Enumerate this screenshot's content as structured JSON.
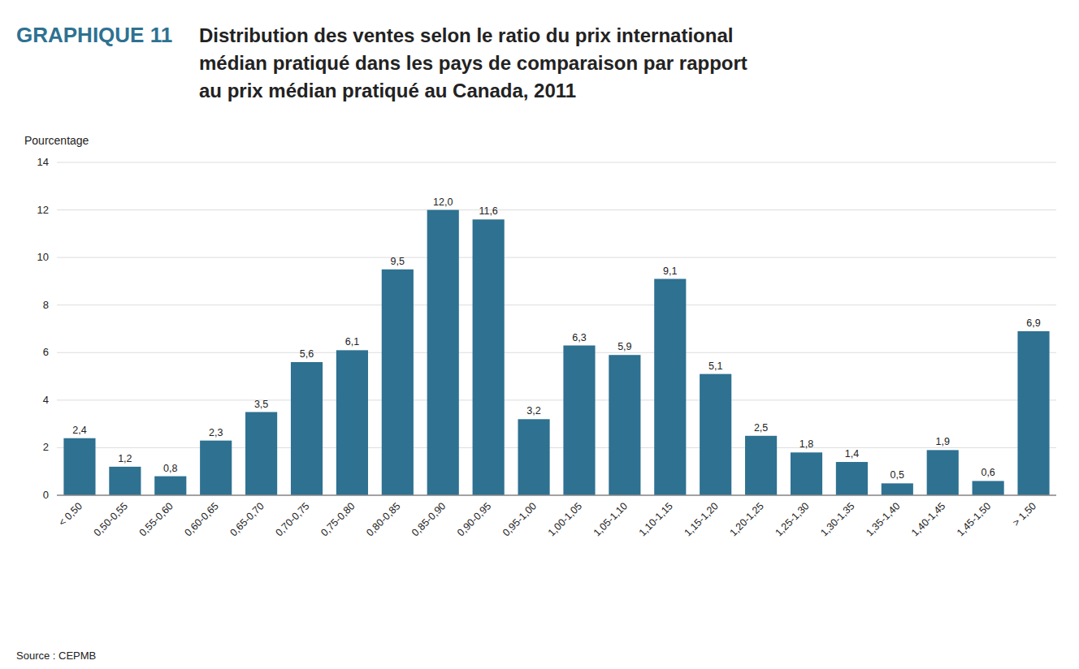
{
  "chart_data": {
    "type": "bar",
    "title": [
      "Distribution des ventes selon le ratio du prix international",
      "médian pratiqué dans les pays de comparaison par rapport",
      "au prix médian pratiqué au Canada, 2011"
    ],
    "annotations": [
      "GRAPHIQUE 11",
      "Source : CEPMB"
    ],
    "ylabel": "Pourcentage",
    "categories": [
      "< 0,50",
      "0,50-0,55",
      "0,55-0,60",
      "0,60-0,65",
      "0,65-0,70",
      "0,70-0,75",
      "0,75-0,80",
      "0,80-0,85",
      "0,85-0,90",
      "0,90-0,95",
      "0,95-1,00",
      "1,00-1,05",
      "1,05-1,10",
      "1,10-1,15",
      "1,15-1,20",
      "1,20-1,25",
      "1,25-1,30",
      "1,30-1,35",
      "1,35-1,40",
      "1,40-1,45",
      "1,45-1,50",
      "> 1,50"
    ],
    "values": [
      2.4,
      1.2,
      0.8,
      2.3,
      3.5,
      5.6,
      6.1,
      9.5,
      12.0,
      11.6,
      3.2,
      6.3,
      5.9,
      9.1,
      5.1,
      2.5,
      1.8,
      1.4,
      0.5,
      1.9,
      0.6,
      6.9
    ],
    "value_labels": [
      "2,4",
      "1,2",
      "0,8",
      "2,3",
      "3,5",
      "5,6",
      "6,1",
      "9,5",
      "12,0",
      "11,6",
      "3,2",
      "6,3",
      "5,9",
      "9,1",
      "5,1",
      "2,5",
      "1,8",
      "1,4",
      "0,5",
      "1,9",
      "0,6",
      "6,9"
    ],
    "color": "#2e7191",
    "ylim": [
      0,
      14
    ],
    "yticks": [
      0,
      2,
      4,
      6,
      8,
      10,
      12,
      14
    ],
    "grid": true
  }
}
